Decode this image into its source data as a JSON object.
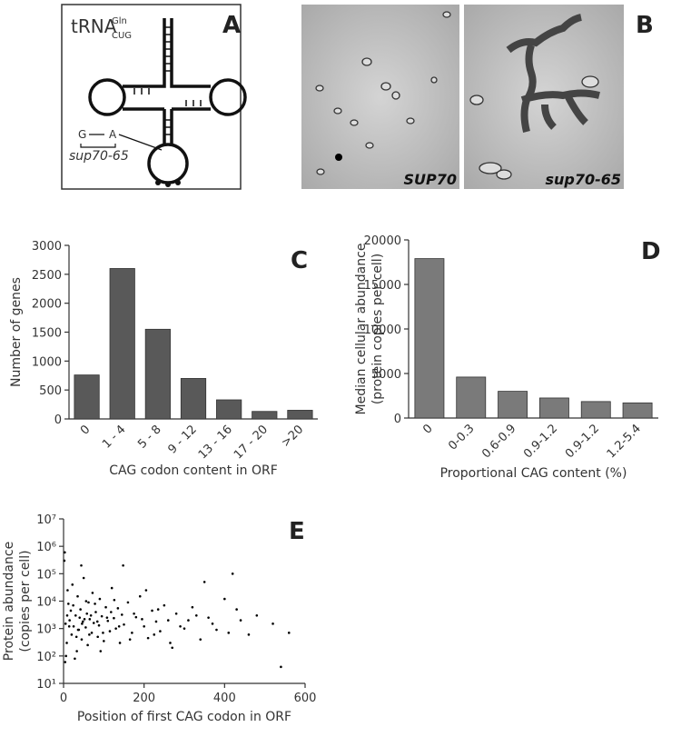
{
  "panel_a": {
    "label": "A",
    "trna": "tRNA",
    "superscript": "Gln",
    "subscript": "CUG",
    "from_base": "G",
    "to_base": "A",
    "allele": "sup70-65"
  },
  "panel_b": {
    "label": "B",
    "left_caption": "SUP70",
    "right_caption": "sup70-65"
  },
  "chart_data": [
    {
      "type": "bar",
      "panel": "C",
      "color": "#595959",
      "categories": [
        "0",
        "1 - 4",
        "5 - 8",
        "9 - 12",
        "13 - 16",
        "17 - 20",
        ">20"
      ],
      "values": [
        760,
        2600,
        1550,
        700,
        330,
        130,
        150
      ],
      "ylim": [
        0,
        3000
      ],
      "yticks": [
        0,
        500,
        1000,
        1500,
        2000,
        2500,
        3000
      ],
      "y_label": [
        "Number of genes"
      ],
      "x_label": "CAG codon content in ORF"
    },
    {
      "type": "bar",
      "panel": "D",
      "color": "#7a7a7a",
      "categories": [
        "0",
        "0-0.3",
        "0.6-0.9",
        "0.9-1.2",
        "0.9-1.2",
        "1.2-5.4"
      ],
      "values": [
        17900,
        4600,
        3000,
        2250,
        1850,
        1700
      ],
      "ylim": [
        0,
        20000
      ],
      "yticks": [
        0,
        5000,
        10000,
        15000,
        20000
      ],
      "y_label": [
        "Median cellular abundance",
        "(protein copies per cell)"
      ],
      "x_label": "Proportional CAG content (%)"
    },
    {
      "type": "scatter",
      "panel": "E",
      "color": "#000000",
      "log_y": true,
      "xlim": [
        0,
        600
      ],
      "xticks": [
        0,
        200,
        400,
        600
      ],
      "ylim": [
        10,
        10000000
      ],
      "yticks": [
        {
          "value": 10,
          "label": "10¹"
        },
        {
          "value": 100,
          "label": "10²"
        },
        {
          "value": 1000,
          "label": "10³"
        },
        {
          "value": 10000,
          "label": "10⁴"
        },
        {
          "value": 100000,
          "label": "10⁵"
        },
        {
          "value": 1000000,
          "label": "10⁶"
        },
        {
          "value": 10000000,
          "label": "10⁷"
        }
      ],
      "y_label": [
        "Protein abundance",
        "(copies per cell)"
      ],
      "x_label": "Position of first CAG codon in ORF",
      "x": [
        5,
        8,
        12,
        15,
        20,
        22,
        25,
        30,
        33,
        35,
        38,
        40,
        42,
        45,
        48,
        50,
        55,
        58,
        60,
        62,
        65,
        70,
        72,
        75,
        80,
        85,
        88,
        90,
        95,
        100,
        105,
        110,
        115,
        120,
        125,
        130,
        135,
        140,
        145,
        150,
        160,
        170,
        180,
        190,
        200,
        210,
        220,
        230,
        240,
        250,
        260,
        270,
        280,
        300,
        320,
        340,
        360,
        380,
        400,
        420,
        440,
        460,
        480,
        520,
        540,
        560,
        3,
        6,
        10,
        18,
        28,
        36,
        44,
        52,
        64,
        78,
        92,
        108,
        126,
        148,
        175,
        205,
        235,
        265,
        310,
        350,
        2,
        4,
        9,
        14,
        24,
        32,
        46,
        56,
        68,
        84,
        98,
        118,
        138,
        165,
        195,
        225,
        290,
        330,
        370,
        410,
        430
      ],
      "y": [
        1500,
        300,
        8000,
        2000,
        600,
        40000,
        1200,
        3000,
        150,
        15000,
        900,
        2500,
        5000,
        400,
        1800,
        70000,
        1100,
        3500,
        250,
        9000,
        2200,
        700,
        20000,
        1600,
        4000,
        500,
        1300,
        12000,
        2800,
        350,
        6000,
        1900,
        800,
        30000,
        2400,
        1000,
        5500,
        300,
        3200,
        1400,
        9000,
        700,
        2600,
        15000,
        1200,
        450,
        4500,
        1800,
        800,
        7000,
        2000,
        200,
        3500,
        1000,
        6000,
        400,
        2500,
        900,
        12000,
        100000,
        2000,
        600,
        3000,
        1500,
        40,
        700,
        600000,
        100,
        25000,
        4500,
        80,
        900,
        200000,
        2200,
        600,
        8000,
        150,
        2500,
        11000,
        200000,
        3500,
        25000,
        5000,
        300,
        2000,
        50000,
        300000,
        60,
        3000,
        1200,
        7000,
        500,
        1500,
        10000,
        3000,
        1800,
        700,
        4000,
        1200,
        400,
        2200,
        600,
        1200,
        3000,
        1500,
        700,
        5000
      ]
    }
  ]
}
